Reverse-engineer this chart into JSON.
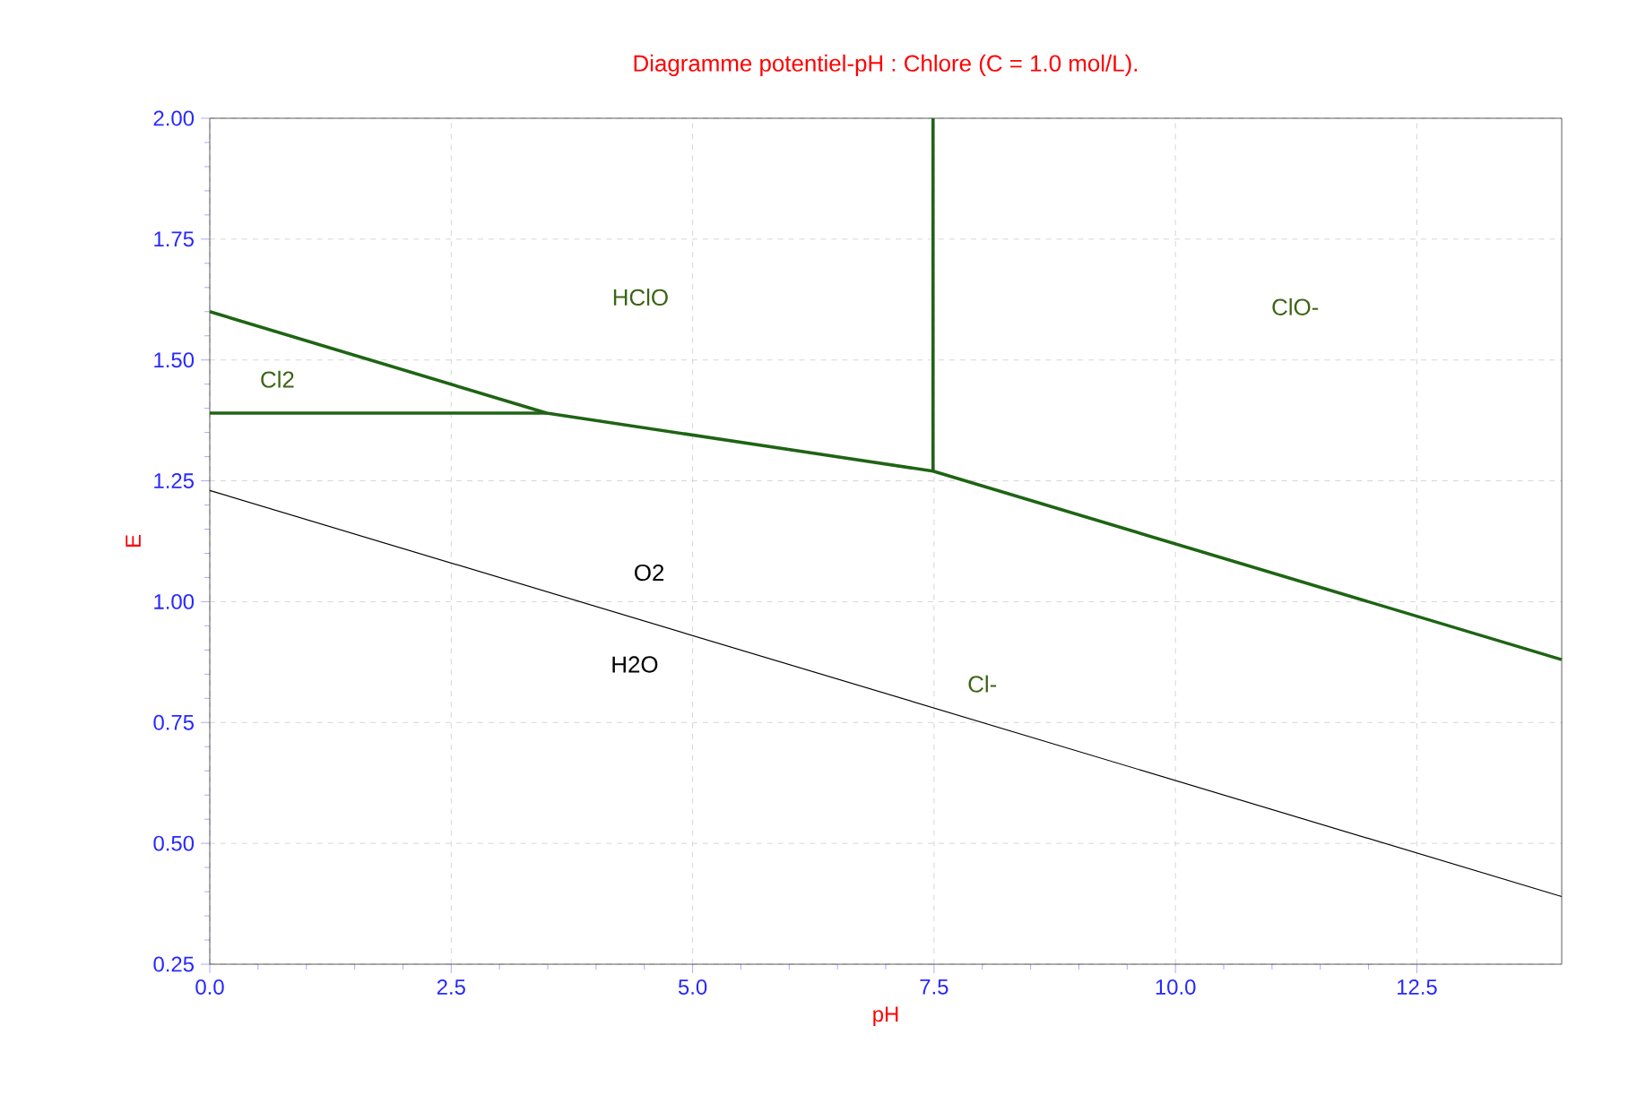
{
  "chart_data": {
    "type": "line",
    "title": "Diagramme potentiel-pH : Chlore (C = 1.0 mol/L).",
    "xlabel": "pH",
    "ylabel": "E",
    "xlim": [
      0,
      14
    ],
    "ylim": [
      0.25,
      2.0
    ],
    "xticks": [
      {
        "value": 0,
        "label": "0.0"
      },
      {
        "value": 2.5,
        "label": "2.5"
      },
      {
        "value": 5,
        "label": "5.0"
      },
      {
        "value": 7.5,
        "label": "7.5"
      },
      {
        "value": 10,
        "label": "10.0"
      },
      {
        "value": 12.5,
        "label": "12.5"
      }
    ],
    "yticks": [
      {
        "value": 0.25,
        "label": "0.25"
      },
      {
        "value": 0.5,
        "label": "0.50"
      },
      {
        "value": 0.75,
        "label": "0.75"
      },
      {
        "value": 1.0,
        "label": "1.00"
      },
      {
        "value": 1.25,
        "label": "1.25"
      },
      {
        "value": 1.5,
        "label": "1.50"
      },
      {
        "value": 1.75,
        "label": "1.75"
      },
      {
        "value": 2.0,
        "label": "2.00"
      }
    ],
    "grid": true,
    "line_style": "solid",
    "series": [
      {
        "color": "#1e6414",
        "x": [
          0,
          3.49,
          7.49,
          14
        ],
        "values": [
          1.6,
          1.39,
          1.27,
          0.88
        ]
      },
      {
        "color": "#1e6414",
        "x": [
          0,
          3.49
        ],
        "values": [
          1.39,
          1.39
        ]
      },
      {
        "color": "#1e6414",
        "x": [
          7.49,
          7.49
        ],
        "values": [
          1.27,
          2.0
        ]
      },
      {
        "color": "#000000",
        "x": [
          0,
          14
        ],
        "values": [
          1.23,
          0.39
        ]
      }
    ],
    "annotations": [
      "Cl2",
      "HClO",
      "ClO-",
      "Cl-",
      "O2",
      "H2O"
    ]
  }
}
